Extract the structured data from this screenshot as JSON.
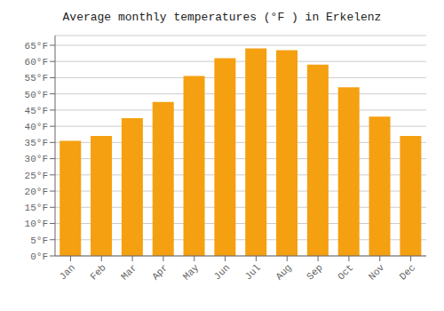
{
  "chart_data": {
    "type": "bar",
    "title": "Average monthly temperatures (°F ) in Erkelenz",
    "categories": [
      "Jan",
      "Feb",
      "Mar",
      "Apr",
      "May",
      "Jun",
      "Jul",
      "Aug",
      "Sep",
      "Oct",
      "Nov",
      "Dec"
    ],
    "values": [
      35.5,
      37.0,
      42.5,
      47.5,
      55.5,
      61.0,
      64.0,
      63.5,
      59.0,
      52.0,
      43.0,
      37.0
    ],
    "color": "#F5A010",
    "ylim": [
      0,
      68
    ],
    "yticks": [
      {
        "value": 0,
        "label": "0°F"
      },
      {
        "value": 5,
        "label": "5°F"
      },
      {
        "value": 10,
        "label": "10°F"
      },
      {
        "value": 15,
        "label": "15°F"
      },
      {
        "value": 20,
        "label": "20°F"
      },
      {
        "value": 25,
        "label": "25°F"
      },
      {
        "value": 30,
        "label": "30°F"
      },
      {
        "value": 35,
        "label": "35°F"
      },
      {
        "value": 40,
        "label": "40°F"
      },
      {
        "value": 45,
        "label": "45°F"
      },
      {
        "value": 50,
        "label": "50°F"
      },
      {
        "value": 55,
        "label": "55°F"
      },
      {
        "value": 60,
        "label": "60°F"
      },
      {
        "value": 65,
        "label": "65°F"
      }
    ],
    "grid": true
  }
}
